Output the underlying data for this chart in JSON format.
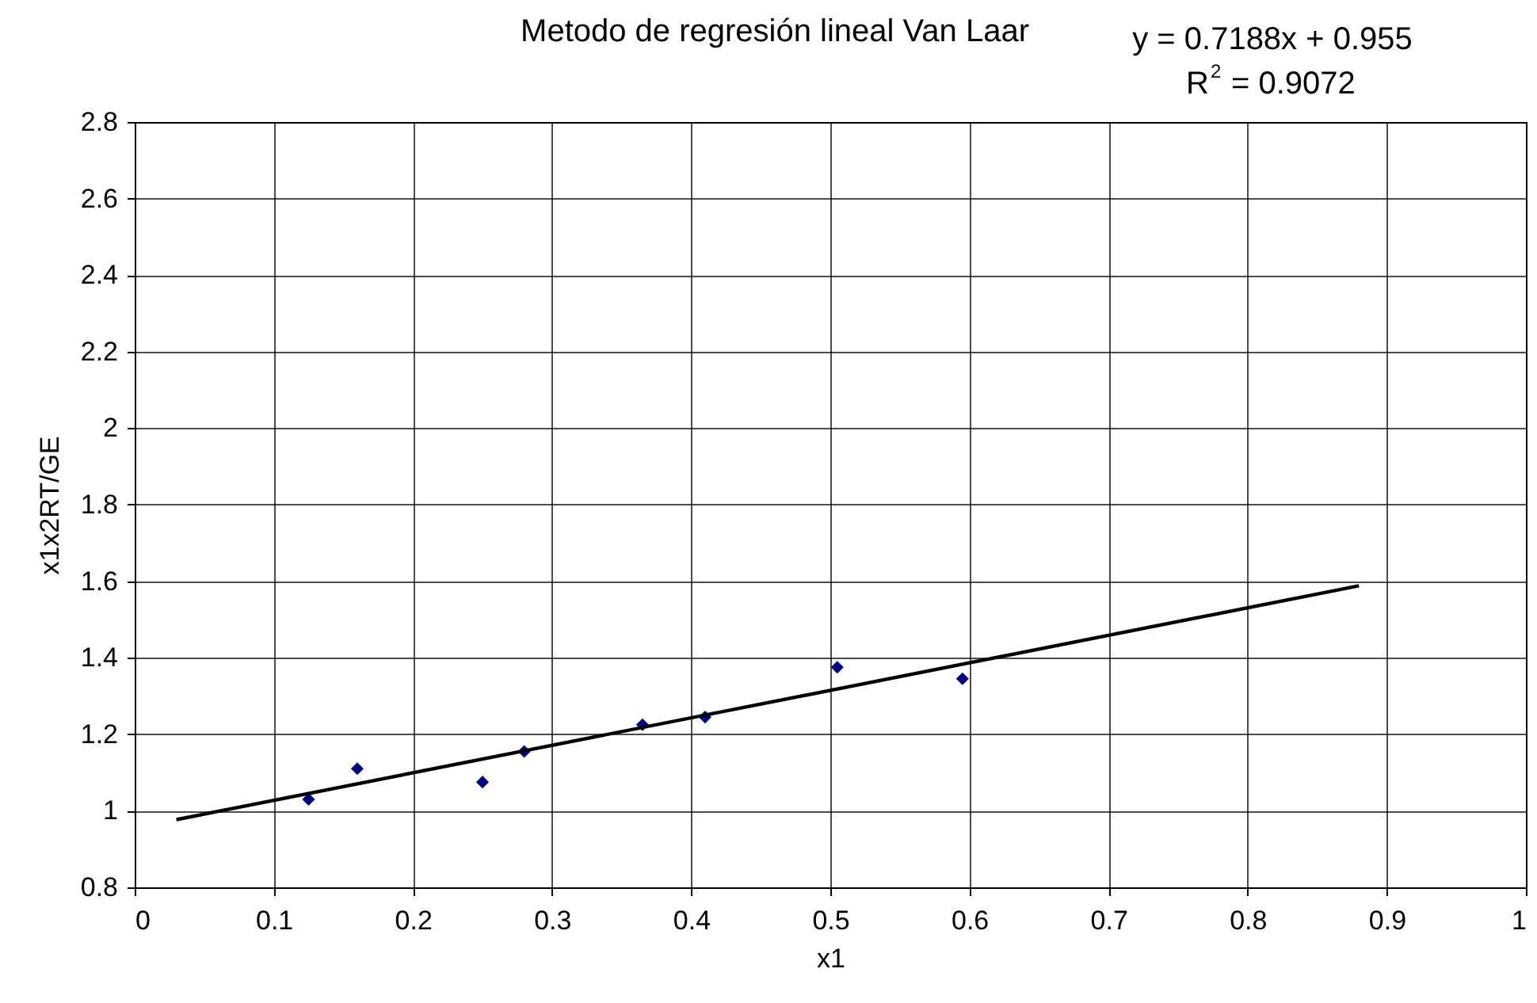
{
  "chart_data": {
    "type": "scatter",
    "title": "Metodo de regresión lineal Van Laar",
    "xlabel": "x1",
    "ylabel": "x1x2RT/GE",
    "annotations": [
      "y = 0.7188x + 0.955",
      "R$^{2}$ = 0.9072"
    ],
    "series": [
      {
        "color": "#000080",
        "marker": "diamond",
        "x": [
          0.125,
          0.16,
          0.25,
          0.28,
          0.365,
          0.41,
          0.505,
          0.595
        ],
        "values": [
          1.03,
          1.11,
          1.075,
          1.155,
          1.225,
          1.245,
          1.375,
          1.345
        ]
      },
      {
        "type": "line",
        "color": "#000000",
        "marker": "none",
        "x": [
          0.03,
          0.88
        ],
        "values": [
          0.977,
          1.588
        ]
      }
    ],
    "xlim": [
      0,
      1
    ],
    "xticks": [
      0,
      0.1,
      0.2,
      0.3,
      0.4,
      0.5,
      0.6,
      0.7,
      0.8,
      0.9,
      1
    ],
    "ylim": [
      0.8,
      2.8
    ],
    "yticks": [
      0.8,
      1,
      1.2,
      1.4,
      1.6,
      1.8,
      2,
      2.2,
      2.4,
      2.6,
      2.8
    ],
    "grid": true
  }
}
